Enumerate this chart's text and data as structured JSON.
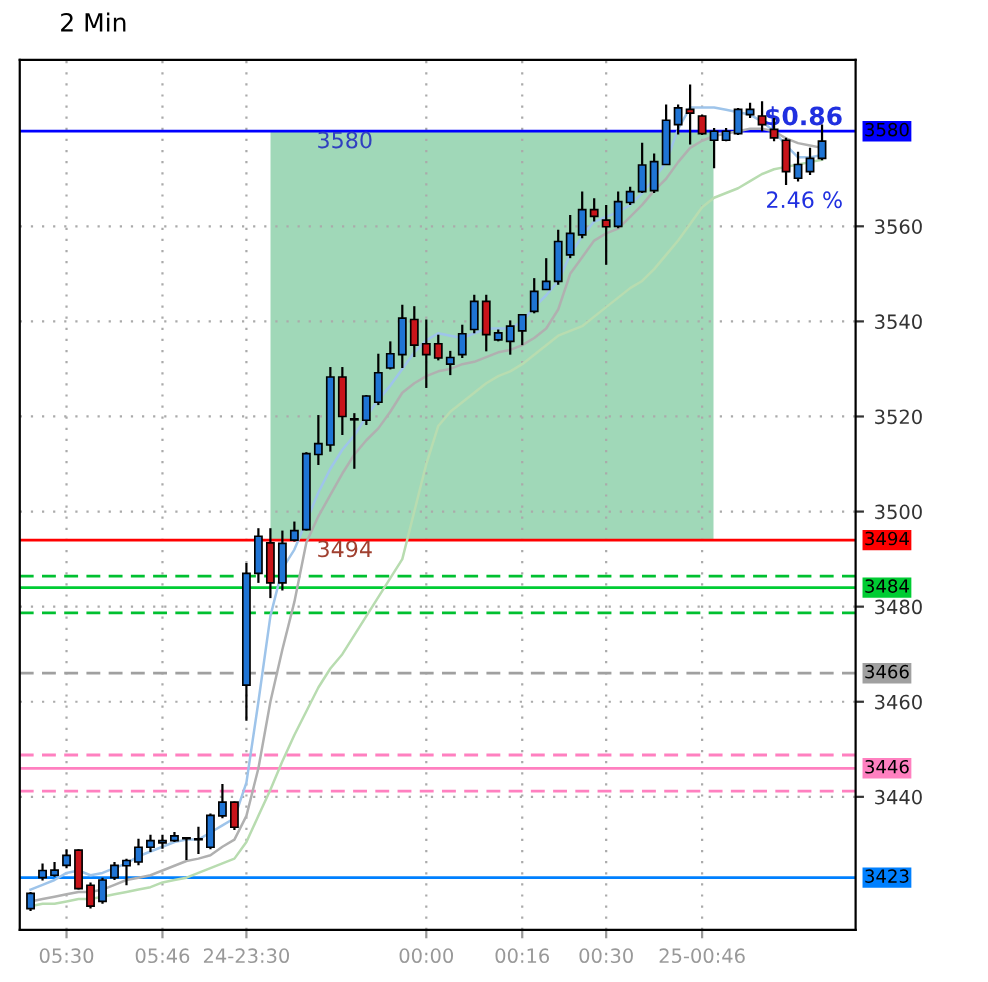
{
  "chart_data": {
    "type": "candlestick",
    "title": "2 Min",
    "categories": [
      null,
      null,
      null,
      "05:30",
      null,
      null,
      null,
      null,
      null,
      null,
      null,
      "05:46",
      null,
      null,
      null,
      null,
      null,
      null,
      "24-23:30",
      null,
      null,
      null,
      null,
      null,
      null,
      null,
      null,
      null,
      null,
      null,
      null,
      null,
      null,
      "00:00",
      null,
      null,
      null,
      null,
      null,
      null,
      null,
      "00:16",
      null,
      null,
      null,
      null,
      null,
      null,
      "00:30",
      null,
      null,
      null,
      null,
      null,
      null,
      null,
      "25-00:46",
      null,
      null,
      null,
      null,
      null,
      null,
      null,
      null,
      null,
      null
    ],
    "ohlc": [
      [
        3416.5,
        3420,
        3416,
        3419.7
      ],
      [
        3423,
        3426,
        3422.4,
        3424.5
      ],
      [
        3423.5,
        3426.3,
        3423.2,
        3424.6
      ],
      [
        3425.6,
        3429,
        3425,
        3427.7
      ],
      [
        3428.8,
        3429,
        3420.5,
        3420.7
      ],
      [
        3421.4,
        3422,
        3416.5,
        3417
      ],
      [
        3418,
        3423,
        3417.5,
        3422.5
      ],
      [
        3423,
        3426.3,
        3422.5,
        3425.6
      ],
      [
        3425.5,
        3427,
        3421.4,
        3426.6
      ],
      [
        3426.3,
        3431.2,
        3425.6,
        3429.4
      ],
      [
        3429.4,
        3432,
        3428.4,
        3430.8
      ],
      [
        3430.3,
        3432,
        3429.1,
        3430.8
      ],
      [
        3430.8,
        3432.6,
        3430.5,
        3431.8
      ],
      [
        3431.2,
        3431.5,
        3426.7,
        3431.2
      ],
      [
        3431,
        3433.7,
        3428,
        3431
      ],
      [
        3429.4,
        3436.5,
        3429,
        3436.1
      ],
      [
        3436,
        3442.7,
        3435.5,
        3438.9
      ],
      [
        3438.9,
        3439,
        3433,
        3433.6
      ],
      [
        3463.5,
        3489.2,
        3456,
        3487
      ],
      [
        3487,
        3496.5,
        3485,
        3494.8
      ],
      [
        3493.4,
        3496.5,
        3481.8,
        3485
      ],
      [
        3485,
        3496,
        3483.4,
        3493.3
      ],
      [
        3494,
        3497.9,
        3493.7,
        3496
      ],
      [
        3496.2,
        3512.5,
        3496,
        3512.2
      ],
      [
        3512,
        3520.3,
        3509.8,
        3514.3
      ],
      [
        3514,
        3530.4,
        3512.6,
        3528.3
      ],
      [
        3528.3,
        3530.4,
        3516.1,
        3520
      ],
      [
        3519.5,
        3520.7,
        3509,
        3519.3
      ],
      [
        3519.2,
        3524.5,
        3518.2,
        3524.3
      ],
      [
        3523,
        3533.2,
        3522.4,
        3529.2
      ],
      [
        3530.2,
        3535.8,
        3529.9,
        3533.2
      ],
      [
        3533,
        3543.5,
        3530.2,
        3540.7
      ],
      [
        3540.4,
        3543.2,
        3532.5,
        3535
      ],
      [
        3535.3,
        3540.4,
        3526,
        3533
      ],
      [
        3535.3,
        3537.2,
        3531.8,
        3532.3
      ],
      [
        3531,
        3533.8,
        3528.7,
        3532.4
      ],
      [
        3533,
        3539.3,
        3532.3,
        3537.4
      ],
      [
        3538.3,
        3545.6,
        3537.5,
        3544.2
      ],
      [
        3544.2,
        3545.6,
        3533.7,
        3537.2
      ],
      [
        3536.1,
        3538.3,
        3535.8,
        3537.6
      ],
      [
        3535.8,
        3540.2,
        3533,
        3539
      ],
      [
        3538,
        3541.5,
        3535,
        3541.4
      ],
      [
        3542.1,
        3549.1,
        3541.7,
        3546.3
      ],
      [
        3546.7,
        3553.3,
        3546.6,
        3548.4
      ],
      [
        3548.4,
        3559.3,
        3547.7,
        3556.8
      ],
      [
        3554,
        3562.4,
        3553.3,
        3558.5
      ],
      [
        3558.2,
        3567.3,
        3557.5,
        3563.5
      ],
      [
        3563.5,
        3565.9,
        3561,
        3562.1
      ],
      [
        3561.3,
        3564.5,
        3551.9,
        3559.9
      ],
      [
        3560,
        3567.3,
        3559.6,
        3565.2
      ],
      [
        3565,
        3568.3,
        3564.5,
        3567.3
      ],
      [
        3567.3,
        3577.6,
        3567,
        3572.9
      ],
      [
        3567.5,
        3575.3,
        3567,
        3573.6
      ],
      [
        3573,
        3585.6,
        3572.9,
        3582.3
      ],
      [
        3581.4,
        3585.6,
        3579.3,
        3584.9
      ],
      [
        3584.6,
        3589.8,
        3577.2,
        3583.8
      ],
      [
        3583.2,
        3583.5,
        3579.2,
        3579.5
      ],
      [
        3578.1,
        3580.7,
        3572.2,
        3580
      ],
      [
        3578.1,
        3580.7,
        3577.9,
        3580
      ],
      [
        3579.5,
        3584.9,
        3579.2,
        3584.6
      ],
      [
        3583.5,
        3586,
        3582.8,
        3584.6
      ],
      [
        3583.2,
        3586.3,
        3580,
        3581.4
      ],
      [
        3580.4,
        3582.8,
        3577.9,
        3578.6
      ],
      [
        3578.1,
        3578.6,
        3568.7,
        3571.5
      ],
      [
        3570.1,
        3575.7,
        3569.4,
        3573
      ],
      [
        3571.5,
        3576.5,
        3570.8,
        3574.3
      ],
      [
        3574.3,
        3581.4,
        3573.9,
        3577.9
      ]
    ],
    "colors": [
      "#1f74d4",
      "#1f74d4",
      "#1f74d4",
      "#1f74d4",
      "#c8141a",
      "#c8141a",
      "#1f74d4",
      "#1f74d4",
      "#1f74d4",
      "#1f74d4",
      "#1f74d4",
      "#1f74d4",
      "#1f74d4",
      "#1f74d4",
      "#1f74d4",
      "#1f74d4",
      "#1f74d4",
      "#c8141a",
      "#1f74d4",
      "#1f74d4",
      "#c8141a",
      "#1f74d4",
      "#1f74d4",
      "#1f74d4",
      "#1f74d4",
      "#1f74d4",
      "#c8141a",
      "#c8141a",
      "#1f74d4",
      "#1f74d4",
      "#1f74d4",
      "#1f74d4",
      "#c8141a",
      "#c8141a",
      "#c8141a",
      "#1f74d4",
      "#1f74d4",
      "#1f74d4",
      "#c8141a",
      "#1f74d4",
      "#1f74d4",
      "#1f74d4",
      "#1f74d4",
      "#1f74d4",
      "#1f74d4",
      "#1f74d4",
      "#1f74d4",
      "#c8141a",
      "#c8141a",
      "#1f74d4",
      "#1f74d4",
      "#1f74d4",
      "#1f74d4",
      "#1f74d4",
      "#1f74d4",
      "#c8141a",
      "#c8141a",
      "#1f74d4",
      "#1f74d4",
      "#1f74d4",
      "#1f74d4",
      "#c8141a",
      "#c8141a",
      "#c8141a",
      "#1f74d4",
      "#1f74d4",
      "#1f74d4"
    ],
    "series": [
      {
        "type": "line",
        "color": "#9ec4ea",
        "values": [
          3420.5,
          3421.5,
          3422.5,
          3424,
          3424.5,
          3423.5,
          3424,
          3425,
          3426,
          3427.5,
          3428.5,
          3429.5,
          3430.5,
          3431,
          3431,
          3432.5,
          3434,
          3435.5,
          3443,
          3460,
          3478,
          3488,
          3492,
          3498,
          3504,
          3509,
          3513,
          3516,
          3520,
          3523.5,
          3526.5,
          3530,
          3533.5,
          3536,
          3537.5,
          3537,
          3536.5,
          3537.5,
          3538.5,
          3538.5,
          3538.5,
          3540,
          3543,
          3545.5,
          3548.5,
          3554,
          3558,
          3561,
          3562,
          3563,
          3564.5,
          3567,
          3570,
          3573.5,
          3580.5,
          3585,
          3585,
          3585,
          3584.5,
          3584,
          3583.5,
          3582,
          3580,
          3577,
          3574.5,
          3574.5,
          3575
        ]
      },
      {
        "type": "line",
        "color": "#b0b0b0",
        "values": [
          3418,
          3418.5,
          3419,
          3419.5,
          3420,
          3420,
          3420.5,
          3421.5,
          3422.5,
          3423,
          3423.5,
          3424.5,
          3425.5,
          3426.5,
          3427,
          3427.7,
          3429.5,
          3431,
          3436,
          3446,
          3460,
          3471,
          3481,
          3493.5,
          3499,
          3503.5,
          3508,
          3512,
          3515,
          3517.5,
          3521,
          3525,
          3527,
          3528.5,
          3529.5,
          3530,
          3531,
          3531.5,
          3532.5,
          3533.5,
          3534,
          3535,
          3536.5,
          3538.5,
          3542.5,
          3550,
          3553.5,
          3557,
          3558.5,
          3559.5,
          3562,
          3564.5,
          3567.5,
          3570,
          3573.5,
          3576.5,
          3578,
          3579,
          3579.5,
          3580,
          3580.5,
          3580.5,
          3580,
          3578.5,
          3577.5,
          3577,
          3576.5
        ]
      },
      {
        "type": "line",
        "color": "#b8dcb0",
        "values": [
          3417,
          3417.5,
          3417.5,
          3418,
          3418.5,
          3418.5,
          3419,
          3419.5,
          3420,
          3420.5,
          3421,
          3422,
          3422.5,
          3423,
          3424,
          3425,
          3426,
          3427,
          3430.5,
          3436,
          3441.5,
          3447.5,
          3453,
          3458,
          3463,
          3467,
          3470,
          3474,
          3478,
          3482,
          3486,
          3490,
          3500,
          3510,
          3518,
          3521,
          3523,
          3525,
          3527,
          3528.5,
          3529.5,
          3531,
          3533,
          3535,
          3537,
          3538,
          3539,
          3541,
          3543,
          3545,
          3547,
          3548.5,
          3551,
          3554,
          3557,
          3560.5,
          3564,
          3566,
          3567,
          3568,
          3569.5,
          3571,
          3572,
          3572.5,
          3573,
          3573.5,
          3574
        ]
      }
    ],
    "ref_lines": [
      {
        "axis": "y",
        "value": 3580,
        "label": "3580",
        "color": "#0000ff",
        "line_style": "solid"
      },
      {
        "axis": "y",
        "value": 3494,
        "label": "3494",
        "color": "#ff0000",
        "line_style": "solid"
      },
      {
        "axis": "y",
        "value": 3486.4,
        "color": "#00c030",
        "line_style": "dashed"
      },
      {
        "axis": "y",
        "value": 3484,
        "label": "3484",
        "color": "#00cc33",
        "line_style": "solid"
      },
      {
        "axis": "y",
        "value": 3478.7,
        "color": "#00c030",
        "line_style": "dashed"
      },
      {
        "axis": "y",
        "value": 3466,
        "label": "3466",
        "color": "#a0a0a0",
        "line_style": "dashed"
      },
      {
        "axis": "y",
        "value": 3448.8,
        "color": "#ff80c0",
        "line_style": "dashed"
      },
      {
        "axis": "y",
        "value": 3446,
        "label": "3446",
        "color": "#ff80c0",
        "line_style": "solid"
      },
      {
        "axis": "y",
        "value": 3441.2,
        "color": "#ff80c0",
        "line_style": "dashed"
      },
      {
        "axis": "y",
        "value": 3423,
        "label": "3423",
        "color": "#0080ff",
        "line_style": "solid"
      }
    ],
    "bands": [
      {
        "axis": "y",
        "from": 3494,
        "to": 3580,
        "color": "#96d4b0"
      }
    ],
    "annotations": [
      {
        "text": "3580",
        "y": 3580
      },
      {
        "text": "3494",
        "y": 3494
      },
      "$0.86",
      "2.46 %"
    ],
    "ylim": [
      3412,
      3595
    ],
    "yticks": [
      3440,
      3460,
      3480,
      3500,
      3520,
      3540,
      3560
    ],
    "grid": true
  }
}
